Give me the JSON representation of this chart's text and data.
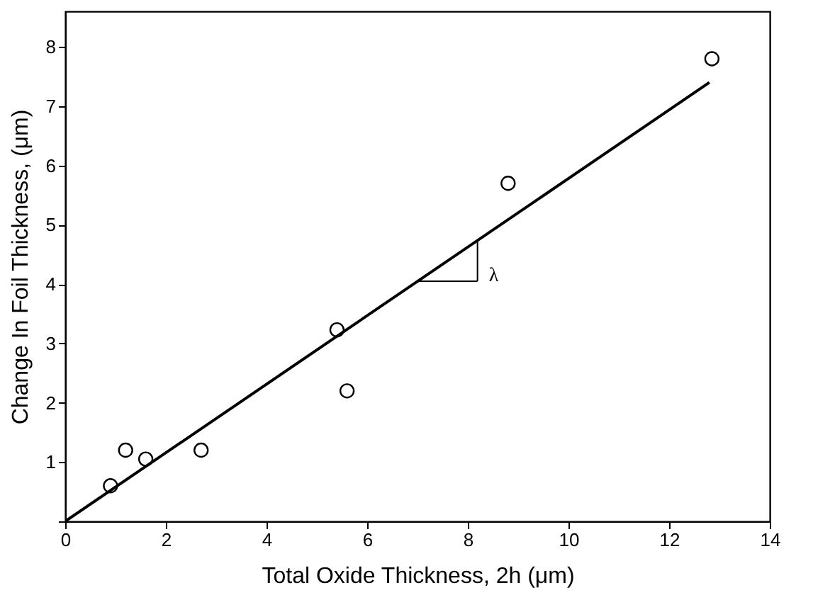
{
  "chart_data": {
    "type": "scatter",
    "xlabel": "Total Oxide Thickness,  2h (μm)",
    "ylabel": "Change In Foil Thickness,  (μm)",
    "xlim": [
      0,
      14
    ],
    "ylim": [
      0,
      8.6
    ],
    "xticks": [
      0,
      2,
      4,
      6,
      8,
      10,
      12,
      14
    ],
    "yticks": [
      {
        "value": 0,
        "label": null
      },
      1,
      2,
      3,
      4,
      5,
      6,
      7,
      8
    ],
    "grid": false,
    "series": [
      {
        "color": "#000000",
        "marker": "circle",
        "x": [
          0.9,
          1.2,
          1.6,
          2.7,
          5.4,
          5.6,
          8.8,
          12.85
        ],
        "values": [
          0.6,
          1.2,
          1.05,
          1.2,
          3.23,
          2.2,
          5.7,
          7.8
        ]
      },
      {
        "type": "line",
        "color": "#000000",
        "line_style": "solid",
        "x": [
          0,
          12.8
        ],
        "values": [
          0,
          7.4
        ]
      }
    ],
    "annotations": [
      "λ"
    ]
  }
}
